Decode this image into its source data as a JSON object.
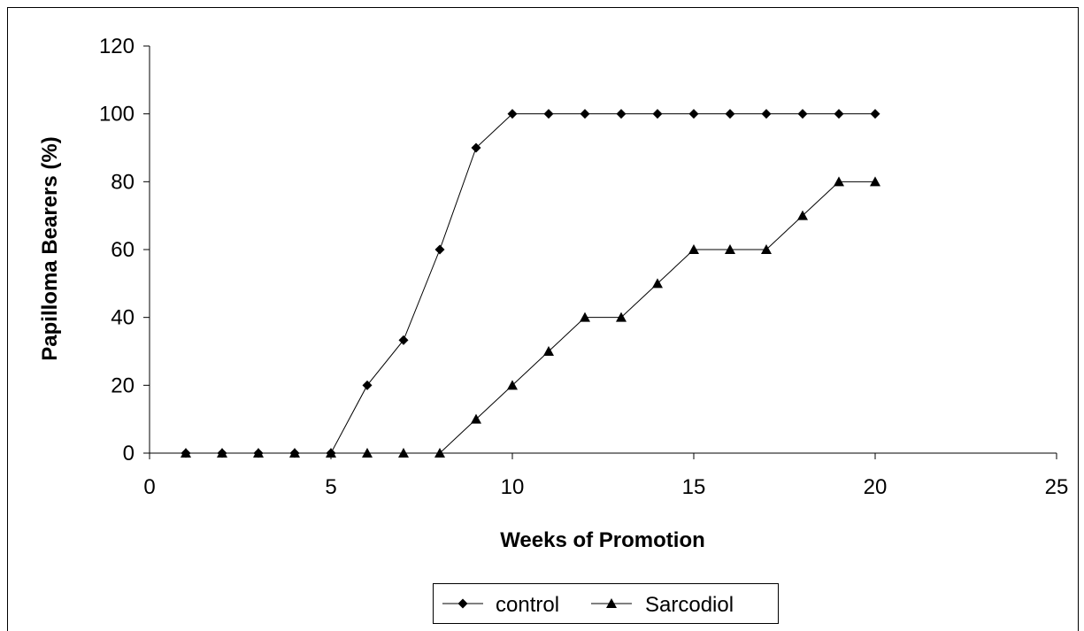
{
  "chart_data": {
    "type": "line",
    "title": "",
    "xlabel": "Weeks of Promotion",
    "ylabel": "Papilloma Bearers (%)",
    "xlim": [
      0,
      25
    ],
    "ylim": [
      0,
      120
    ],
    "xticks": [
      0,
      5,
      10,
      15,
      20,
      25
    ],
    "yticks": [
      0,
      20,
      40,
      60,
      80,
      100,
      120
    ],
    "grid": false,
    "legend": "bottom",
    "series": [
      {
        "name": "control",
        "marker": "diamond",
        "color": "#000000",
        "x": [
          1,
          2,
          3,
          4,
          5,
          6,
          7,
          8,
          9,
          10,
          11,
          12,
          13,
          14,
          15,
          16,
          17,
          18,
          19,
          20
        ],
        "values": [
          0,
          0,
          0,
          0,
          0,
          20,
          33.3,
          60,
          90,
          100,
          100,
          100,
          100,
          100,
          100,
          100,
          100,
          100,
          100,
          100
        ]
      },
      {
        "name": "Sarcodiol",
        "marker": "triangle",
        "color": "#000000",
        "x": [
          1,
          2,
          3,
          4,
          5,
          6,
          7,
          8,
          9,
          10,
          11,
          12,
          13,
          14,
          15,
          16,
          17,
          18,
          19,
          20
        ],
        "values": [
          0,
          0,
          0,
          0,
          0,
          0,
          0,
          0,
          10,
          20,
          30,
          40,
          40,
          50,
          60,
          60,
          60,
          70,
          80,
          80
        ]
      }
    ]
  }
}
